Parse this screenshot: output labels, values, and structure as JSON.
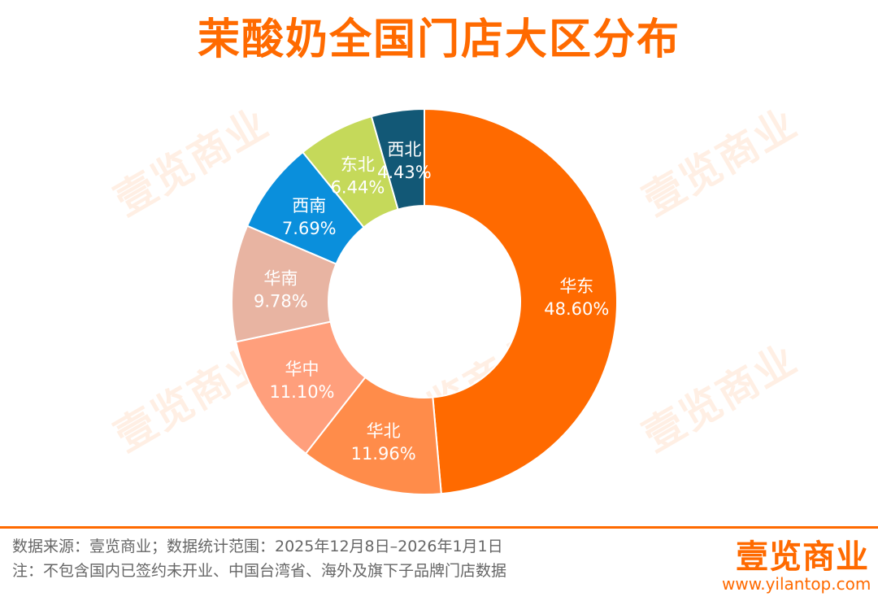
{
  "title": "茉酸奶全国门店大区分布",
  "chart_data": {
    "type": "pie",
    "title": "茉酸奶全国门店大区分布",
    "series": [
      {
        "name": "华东",
        "label": "华东",
        "value": 48.6,
        "value_label": "48.60%",
        "color": "#ff6a00"
      },
      {
        "name": "华北",
        "label": "华北",
        "value": 11.96,
        "value_label": "11.96%",
        "color": "#ff8c4a"
      },
      {
        "name": "华中",
        "label": "华中",
        "value": 11.1,
        "value_label": "11.10%",
        "color": "#ff9f7c"
      },
      {
        "name": "华南",
        "label": "华南",
        "value": 9.78,
        "value_label": "9.78%",
        "color": "#e8b4a2"
      },
      {
        "name": "西南",
        "label": "西南",
        "value": 7.69,
        "value_label": "7.69%",
        "color": "#0a8fdc"
      },
      {
        "name": "东北",
        "label": "东北",
        "value": 6.44,
        "value_label": "6.44%",
        "color": "#c5d95a"
      },
      {
        "name": "西北",
        "label": "西北",
        "value": 4.43,
        "value_label": "4.43%",
        "color": "#125876"
      }
    ],
    "donut": true
  },
  "watermark": "壹览商业",
  "footer": {
    "source": "数据来源：壹览商业；数据统计范围：2025年12月8日–2026年1月1日",
    "note": "注：不包含国内已签约未开业、中国台湾省、海外及旗下子品牌门店数据",
    "logo": "壹览商业",
    "site": "www.yilantop.com"
  },
  "colors": {
    "accent": "#ff6a00",
    "footer_text": "#666666"
  }
}
